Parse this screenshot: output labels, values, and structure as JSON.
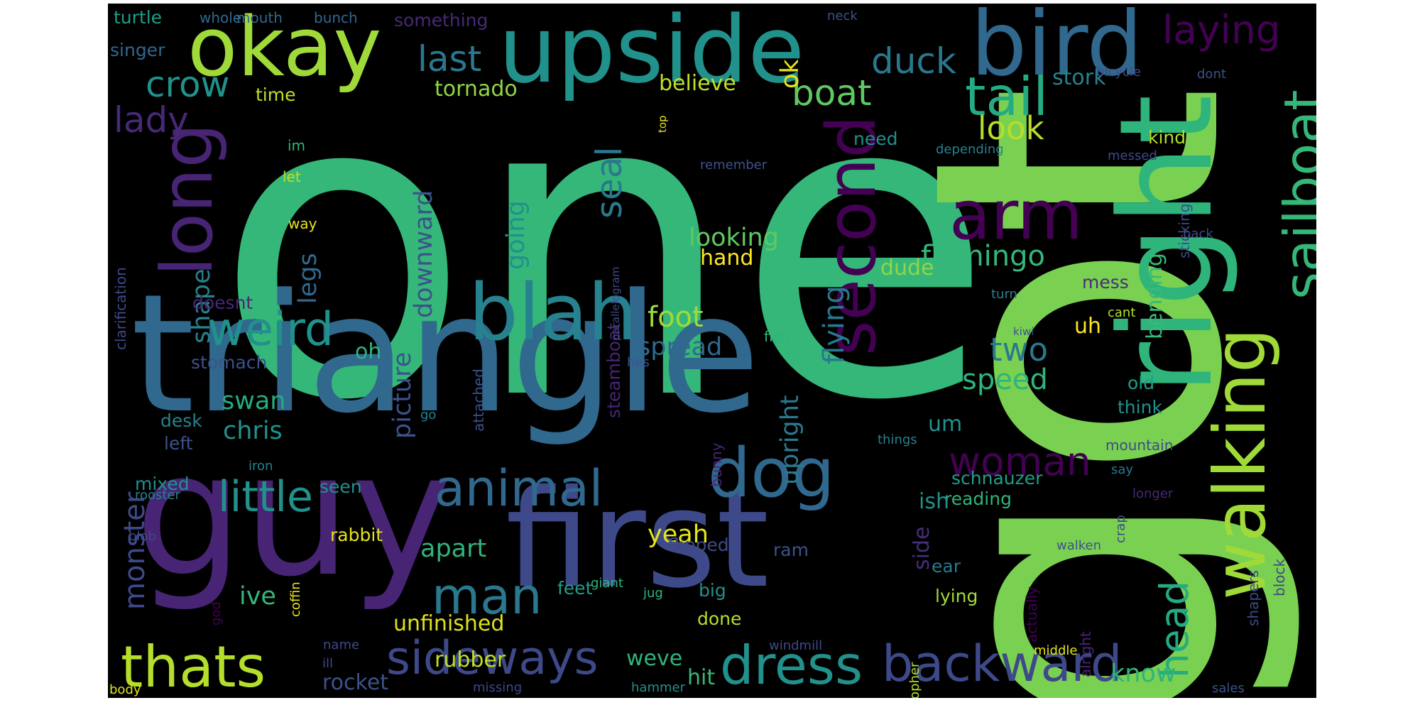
{
  "words": [
    {
      "text": "one",
      "color": "#35b779"
    },
    {
      "text": "got",
      "color": "#7ad151"
    },
    {
      "text": "triangle",
      "color": "#31688e"
    },
    {
      "text": "guy",
      "color": "#482475"
    },
    {
      "text": "first",
      "color": "#3e4989"
    },
    {
      "text": "right",
      "color": "#2fb47c"
    },
    {
      "text": "upside",
      "color": "#21918c"
    },
    {
      "text": "bird",
      "color": "#31688e"
    },
    {
      "text": "okay",
      "color": "#a0da39"
    },
    {
      "text": "walking",
      "color": "#a0da39"
    },
    {
      "text": "blah",
      "color": "#26828e"
    },
    {
      "text": "dog",
      "color": "#31688e"
    },
    {
      "text": "long",
      "color": "#482475"
    },
    {
      "text": "second",
      "color": "#440154"
    },
    {
      "text": "arm",
      "color": "#440154"
    },
    {
      "text": "sailboat",
      "color": "#35b779"
    },
    {
      "text": "tail",
      "color": "#25ab82"
    },
    {
      "text": "dress",
      "color": "#21918c"
    },
    {
      "text": "backward",
      "color": "#3e4989"
    },
    {
      "text": "sideways",
      "color": "#3e4989"
    },
    {
      "text": "thats",
      "color": "#b5de2b"
    },
    {
      "text": "animal",
      "color": "#31688e"
    },
    {
      "text": "man",
      "color": "#2a788e"
    },
    {
      "text": "weird",
      "color": "#21918c"
    },
    {
      "text": "little",
      "color": "#21918c"
    },
    {
      "text": "woman",
      "color": "#440154"
    },
    {
      "text": "head",
      "color": "#25ab82"
    },
    {
      "text": "laying",
      "color": "#440154"
    },
    {
      "text": "duck",
      "color": "#2a788e"
    },
    {
      "text": "last",
      "color": "#2a788e"
    },
    {
      "text": "crow",
      "color": "#21918c"
    },
    {
      "text": "lady",
      "color": "#482878"
    },
    {
      "text": "boat",
      "color": "#5ec962"
    },
    {
      "text": "look",
      "color": "#b5de2b"
    },
    {
      "text": "two",
      "color": "#2a788e"
    },
    {
      "text": "speed",
      "color": "#2fb47c"
    },
    {
      "text": "flamingo",
      "color": "#35b779"
    },
    {
      "text": "foot",
      "color": "#a0da39"
    },
    {
      "text": "spread",
      "color": "#31688e"
    },
    {
      "text": "swan",
      "color": "#25ab82"
    },
    {
      "text": "chris",
      "color": "#21918c"
    },
    {
      "text": "monster",
      "color": "#3e4989"
    },
    {
      "text": "downward",
      "color": "#3b528b"
    },
    {
      "text": "picture",
      "color": "#3b528b"
    },
    {
      "text": "going",
      "color": "#21918c"
    },
    {
      "text": "seal",
      "color": "#2a788e"
    },
    {
      "text": "flying",
      "color": "#2a788e"
    },
    {
      "text": "upright",
      "color": "#2a788e"
    },
    {
      "text": "apart",
      "color": "#2fb47c"
    },
    {
      "text": "yeah",
      "color": "#e4e51a"
    },
    {
      "text": "ive",
      "color": "#35b779"
    },
    {
      "text": "unfinished",
      "color": "#e0e21a"
    },
    {
      "text": "rubber",
      "color": "#c2df23"
    },
    {
      "text": "rocket",
      "color": "#3b528b"
    },
    {
      "text": "hit",
      "color": "#38b977"
    },
    {
      "text": "weve",
      "color": "#2fb47c"
    },
    {
      "text": "know",
      "color": "#2fb47c"
    },
    {
      "text": "looking",
      "color": "#5ec962"
    },
    {
      "text": "hand",
      "color": "#fde725"
    },
    {
      "text": "dude",
      "color": "#8fd744"
    },
    {
      "text": "believe",
      "color": "#c2df23"
    },
    {
      "text": "tornado",
      "color": "#8fd744"
    },
    {
      "text": "ok",
      "color": "#e5e419"
    },
    {
      "text": "shape",
      "color": "#26828e"
    },
    {
      "text": "legs",
      "color": "#31688e"
    },
    {
      "text": "oh",
      "color": "#2fb47c"
    },
    {
      "text": "um",
      "color": "#21918c"
    },
    {
      "text": "uh",
      "color": "#fde725"
    },
    {
      "text": "bending",
      "color": "#38b977"
    },
    {
      "text": "stork",
      "color": "#26828e"
    },
    {
      "text": "need",
      "color": "#21918c"
    },
    {
      "text": "kind",
      "color": "#b5de2b"
    },
    {
      "text": "mess",
      "color": "#472d7b"
    },
    {
      "text": "schnauzer",
      "color": "#1f9e89"
    },
    {
      "text": "reading",
      "color": "#2fb47c"
    },
    {
      "text": "side",
      "color": "#472d7b"
    },
    {
      "text": "ish",
      "color": "#21918c"
    },
    {
      "text": "ram",
      "color": "#3b528b"
    },
    {
      "text": "ear",
      "color": "#2a788e"
    },
    {
      "text": "lying",
      "color": "#a0da39"
    },
    {
      "text": "think",
      "color": "#21918c"
    },
    {
      "text": "old",
      "color": "#1f9e89"
    },
    {
      "text": "doesnt",
      "color": "#482878"
    },
    {
      "text": "stomach",
      "color": "#3b528b"
    },
    {
      "text": "desk",
      "color": "#26828e"
    },
    {
      "text": "left",
      "color": "#3b528b"
    },
    {
      "text": "mixed",
      "color": "#21918c"
    },
    {
      "text": "seen",
      "color": "#21918c"
    },
    {
      "text": "rabbit",
      "color": "#e5e419"
    },
    {
      "text": "flipped",
      "color": "#3e4989"
    },
    {
      "text": "feet",
      "color": "#1f9e89"
    },
    {
      "text": "big",
      "color": "#21918c"
    },
    {
      "text": "done",
      "color": "#b5de2b"
    },
    {
      "text": "attached",
      "color": "#3b528b"
    },
    {
      "text": "steamboat",
      "color": "#482475"
    },
    {
      "text": "parallelogram",
      "color": "#3e4989"
    },
    {
      "text": "bunny",
      "color": "#482475"
    },
    {
      "text": "clarification",
      "color": "#3e4989"
    },
    {
      "text": "turtle",
      "color": "#1f9e89"
    },
    {
      "text": "whole",
      "color": "#31688e"
    },
    {
      "text": "mouth",
      "color": "#31688e"
    },
    {
      "text": "bunch",
      "color": "#31688e"
    },
    {
      "text": "something",
      "color": "#482878"
    },
    {
      "text": "singer",
      "color": "#31688e"
    },
    {
      "text": "time",
      "color": "#c2df23"
    },
    {
      "text": "im",
      "color": "#2fb47c"
    },
    {
      "text": "let",
      "color": "#c2df23"
    },
    {
      "text": "way",
      "color": "#e5e419"
    },
    {
      "text": "remember",
      "color": "#3b528b"
    },
    {
      "text": "depending",
      "color": "#26828e"
    },
    {
      "text": "messed",
      "color": "#3e4989"
    },
    {
      "text": "sticking",
      "color": "#3e4989"
    },
    {
      "text": "back",
      "color": "#3e4989"
    },
    {
      "text": "turn",
      "color": "#26828e"
    },
    {
      "text": "cant",
      "color": "#b5de2b"
    },
    {
      "text": "kiwi",
      "color": "#3b528b"
    },
    {
      "text": "fish",
      "color": "#2fb47c"
    },
    {
      "text": "hes",
      "color": "#3b528b"
    },
    {
      "text": "go",
      "color": "#26828e"
    },
    {
      "text": "things",
      "color": "#26828e"
    },
    {
      "text": "mountain",
      "color": "#3e4989"
    },
    {
      "text": "iron",
      "color": "#26828e"
    },
    {
      "text": "say",
      "color": "#2a788e"
    },
    {
      "text": "longer",
      "color": "#482878"
    },
    {
      "text": "crap",
      "color": "#3e4989"
    },
    {
      "text": "shapers",
      "color": "#3e4989"
    },
    {
      "text": "alright",
      "color": "#482475"
    },
    {
      "text": "actually",
      "color": "#440154"
    },
    {
      "text": "walken",
      "color": "#3b528b"
    },
    {
      "text": "christopher",
      "color": "#b5de2b"
    },
    {
      "text": "coffin",
      "color": "#e5e419"
    },
    {
      "text": "giant",
      "color": "#2fb47c"
    },
    {
      "text": "jug",
      "color": "#2fb47c"
    },
    {
      "text": "god",
      "color": "#440154"
    },
    {
      "text": "rooster",
      "color": "#26828e"
    },
    {
      "text": "blob",
      "color": "#3e4989"
    },
    {
      "text": "name",
      "color": "#3e4989"
    },
    {
      "text": "ill",
      "color": "#3e4989"
    },
    {
      "text": "body",
      "color": "#e5e419"
    },
    {
      "text": "missing",
      "color": "#3e4989"
    },
    {
      "text": "hammer",
      "color": "#21918c"
    },
    {
      "text": "windmill",
      "color": "#3e4989"
    },
    {
      "text": "middle",
      "color": "#e5e419"
    },
    {
      "text": "sales",
      "color": "#3b528b"
    },
    {
      "text": "block",
      "color": "#3e4989"
    },
    {
      "text": "neck",
      "color": "#3b528b"
    },
    {
      "text": "bicycle",
      "color": "#3e4989"
    },
    {
      "text": "dont",
      "color": "#3b528b"
    },
    {
      "text": "top",
      "color": "#e5e419"
    }
  ]
}
